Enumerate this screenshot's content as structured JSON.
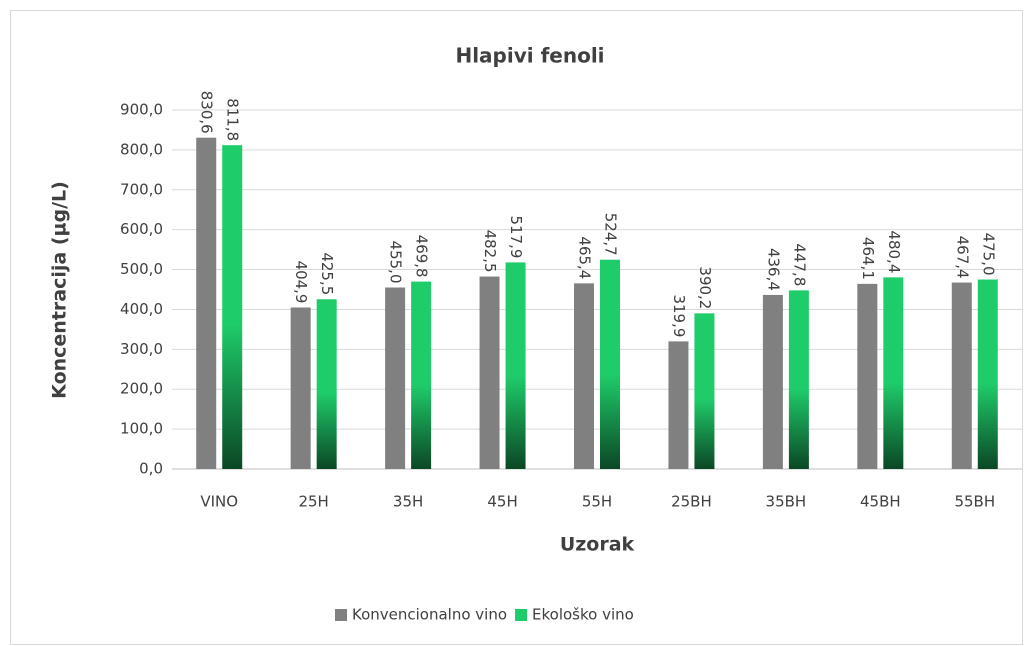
{
  "chart_data": {
    "type": "bar",
    "title": "Hlapivi fenoli",
    "xlabel": "Uzorak",
    "ylabel": "Koncentracija  (µg/L)",
    "categories": [
      "VINO",
      "25H",
      "35H",
      "45H",
      "55H",
      "25BH",
      "35BH",
      "45BH",
      "55BH"
    ],
    "series": [
      {
        "name": "Konvencionalno vino",
        "color": "#808080",
        "values": [
          830.6,
          404.9,
          455.0,
          482.5,
          465.4,
          319.9,
          436.4,
          464.1,
          467.4
        ],
        "value_labels": [
          "830,6",
          "404,9",
          "455,0",
          "482,5",
          "465,4",
          "319,9",
          "436,4",
          "464,1",
          "467,4"
        ]
      },
      {
        "name": "Ekološko vino",
        "color": "#1fcc6a",
        "values": [
          811.8,
          425.5,
          469.8,
          517.9,
          524.7,
          390.2,
          447.8,
          480.4,
          475.0
        ],
        "value_labels": [
          "811,8",
          "425,5",
          "469,8",
          "517,9",
          "524,7",
          "390,2",
          "447,8",
          "480,4",
          "475,0"
        ]
      }
    ],
    "ylim": [
      0,
      900
    ],
    "yticks": [
      {
        "value": 0,
        "label": "0,0"
      },
      {
        "value": 100,
        "label": "100,0"
      },
      {
        "value": 200,
        "label": "200,0"
      },
      {
        "value": 300,
        "label": "300,0"
      },
      {
        "value": 400,
        "label": "400,0"
      },
      {
        "value": 500,
        "label": "500,0"
      },
      {
        "value": 600,
        "label": "600,0"
      },
      {
        "value": 700,
        "label": "700,0"
      },
      {
        "value": 800,
        "label": "800,0"
      },
      {
        "value": 900,
        "label": "900,0"
      }
    ],
    "legend": "bottom"
  }
}
